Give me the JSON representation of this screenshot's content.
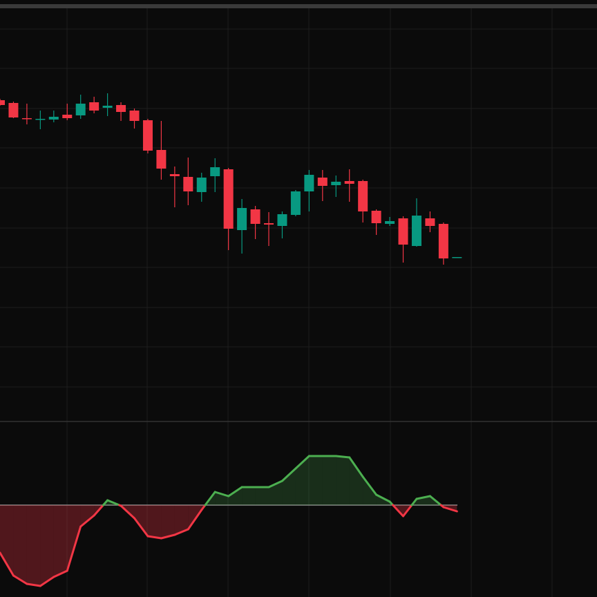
{
  "chart_data": [
    {
      "type": "candlestick",
      "up_color": "#089981",
      "down_color": "#f23645",
      "ylim": [
        0,
        610
      ],
      "yticks": [
        568,
        511,
        453,
        396,
        338,
        280,
        223,
        165,
        108,
        50
      ],
      "grid": true,
      "open": [
        465,
        461,
        439,
        437,
        437,
        444,
        443,
        462,
        454,
        458,
        450,
        436,
        393,
        358,
        354,
        332,
        355,
        365,
        277,
        307,
        287,
        283,
        299,
        333,
        353,
        342,
        348,
        348,
        305,
        286,
        294,
        254,
        294,
        286,
        238
      ],
      "close": [
        458,
        440,
        438,
        438,
        441,
        439,
        460,
        450,
        457,
        448,
        435,
        392,
        366,
        355,
        333,
        353,
        368,
        279,
        309,
        286,
        285,
        300,
        333,
        357,
        341,
        347,
        344,
        304,
        287,
        290,
        256,
        298,
        283,
        236,
        238
      ],
      "high": [
        467,
        463,
        460,
        450,
        450,
        460,
        473,
        470,
        475,
        462,
        453,
        438,
        435,
        369,
        382,
        360,
        381,
        367,
        322,
        312,
        303,
        304,
        335,
        364,
        364,
        356,
        365,
        350,
        307,
        296,
        297,
        323,
        304,
        288,
        238
      ],
      "low": [
        457,
        439,
        430,
        423,
        433,
        436,
        438,
        446,
        442,
        435,
        424,
        388,
        350,
        310,
        313,
        318,
        332,
        248,
        243,
        264,
        254,
        265,
        297,
        304,
        319,
        325,
        318,
        288,
        270,
        283,
        230,
        253,
        274,
        227,
        238
      ]
    },
    {
      "type": "line",
      "up_color": "#4caf50",
      "down_color": "#f23645",
      "ylim": [
        -133,
        121
      ],
      "yticks": [
        0
      ],
      "values": [
        -69,
        -102,
        -114,
        -117,
        -104,
        -95,
        -31,
        -15,
        7,
        -1,
        -19,
        -45,
        -48,
        -43,
        -35,
        -7,
        19,
        13,
        26,
        26,
        26,
        35,
        53,
        71,
        71,
        71,
        69,
        41,
        15,
        5,
        -16,
        9,
        13,
        -3,
        -9
      ]
    }
  ]
}
